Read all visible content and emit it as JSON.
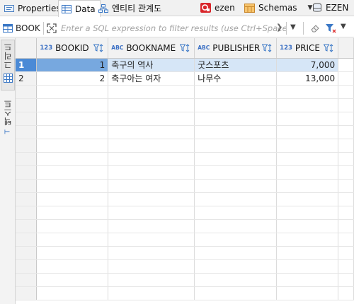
{
  "tabs": [
    {
      "label": "Properties",
      "icon": "properties-icon",
      "active": false
    },
    {
      "label": "Data",
      "icon": "data-grid-icon",
      "active": true
    },
    {
      "label": "엔티티 관계도",
      "icon": "er-diagram-icon",
      "active": false
    }
  ],
  "toolbar": {
    "connection": "ezen",
    "schemas": "Schemas",
    "database": "EZEN"
  },
  "filter": {
    "table_name": "BOOK",
    "placeholder": "Enter a SQL expression to filter results (use Ctrl+Space)"
  },
  "side_tabs": {
    "grid": "그리드",
    "text": "텍스트"
  },
  "columns": [
    {
      "type": "123",
      "name": "BOOKID"
    },
    {
      "type": "ABC",
      "name": "BOOKNAME"
    },
    {
      "type": "ABC",
      "name": "PUBLISHER"
    },
    {
      "type": "123",
      "name": "PRICE"
    }
  ],
  "rows": [
    {
      "num": "1",
      "bookid": "1",
      "bookname": "축구의 역사",
      "publisher": "굿스포츠",
      "price": "7,000"
    },
    {
      "num": "2",
      "bookid": "2",
      "bookname": "축구아는 여자",
      "publisher": "나무수",
      "price": "13,000"
    }
  ],
  "colors": {
    "selected_row_header": "#4b8ad6",
    "selected_row": "#d6e6f7",
    "focused_cell": "#77a8df",
    "type_label": "#3a6fc4"
  }
}
